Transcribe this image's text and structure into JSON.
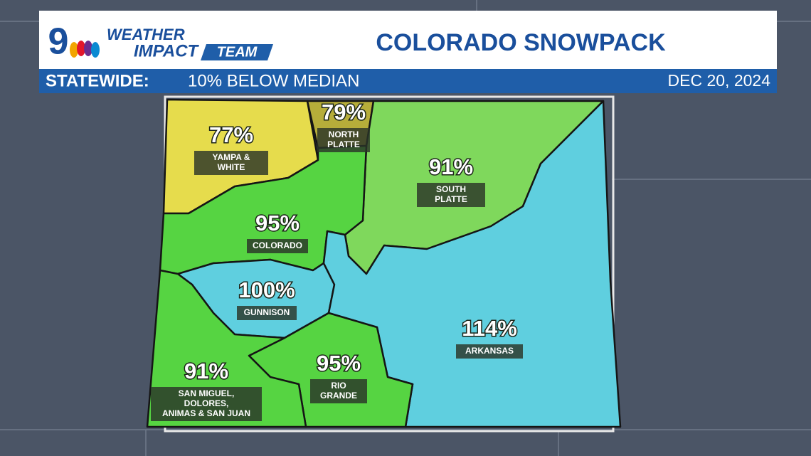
{
  "header": {
    "logo": {
      "number": "9",
      "line1": "WEATHER",
      "line2": "IMPACT",
      "line3": "TEAM"
    },
    "title": "COLORADO SNOWPACK",
    "statewide_label": "STATEWIDE:",
    "statewide_value": "10% BELOW MEDIAN",
    "date": "DEC 20, 2024"
  },
  "regions": [
    {
      "percent": "77%",
      "label": [
        "YAMPA &",
        "WHITE"
      ]
    },
    {
      "percent": "79%",
      "label": [
        "NORTH",
        "PLATTE"
      ]
    },
    {
      "percent": "91%",
      "label": [
        "SOUTH",
        "PLATTE"
      ]
    },
    {
      "percent": "95%",
      "label": [
        "COLORADO"
      ]
    },
    {
      "percent": "100%",
      "label": [
        "GUNNISON"
      ]
    },
    {
      "percent": "114%",
      "label": [
        "ARKANSAS"
      ]
    },
    {
      "percent": "95%",
      "label": [
        "RIO",
        "GRANDE"
      ]
    },
    {
      "percent": "91%",
      "label": [
        "SAN MIGUEL,",
        "DOLORES,",
        "ANIMAS & SAN JUAN"
      ]
    }
  ]
}
